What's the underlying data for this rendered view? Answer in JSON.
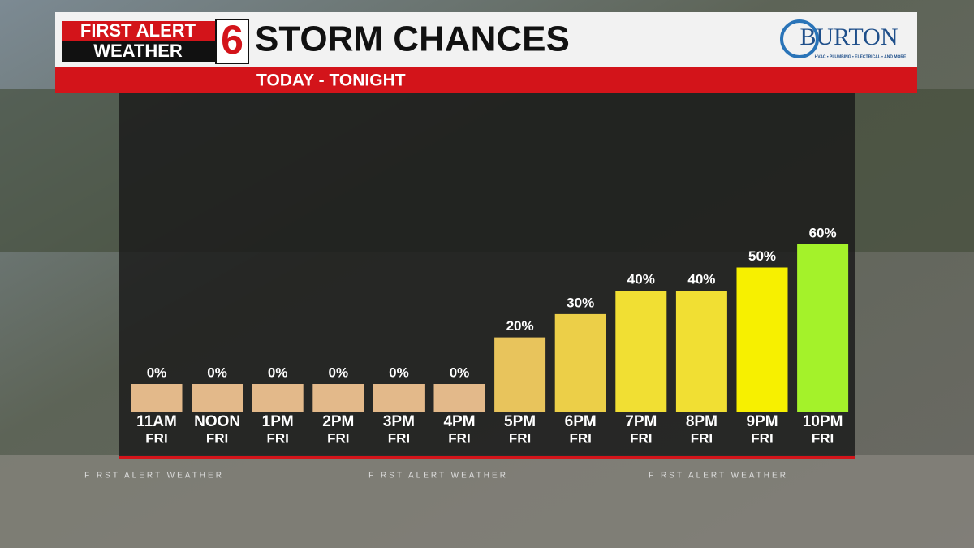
{
  "branding": {
    "logo_line1": "FIRST ALERT",
    "logo_line2": "WEATHER",
    "channel": "6",
    "sponsor": "BURTON",
    "sponsor_tagline": "HVAC • PLUMBING • ELECTRICAL • AND MORE"
  },
  "footer": [
    "FIRST ALERT WEATHER",
    "FIRST ALERT WEATHER",
    "FIRST ALERT WEATHER"
  ],
  "chart_data": {
    "type": "bar",
    "title": "STORM CHANCES",
    "subtitle": "TODAY - TONIGHT",
    "categories": [
      [
        "11AM",
        "FRI"
      ],
      [
        "NOON",
        "FRI"
      ],
      [
        "1PM",
        "FRI"
      ],
      [
        "2PM",
        "FRI"
      ],
      [
        "3PM",
        "FRI"
      ],
      [
        "4PM",
        "FRI"
      ],
      [
        "5PM",
        "FRI"
      ],
      [
        "6PM",
        "FRI"
      ],
      [
        "7PM",
        "FRI"
      ],
      [
        "8PM",
        "FRI"
      ],
      [
        "9PM",
        "FRI"
      ],
      [
        "10PM",
        "FRI"
      ]
    ],
    "values": [
      0,
      0,
      0,
      0,
      0,
      0,
      20,
      30,
      40,
      40,
      50,
      60
    ],
    "value_labels": [
      "0%",
      "0%",
      "0%",
      "0%",
      "0%",
      "0%",
      "20%",
      "30%",
      "40%",
      "40%",
      "50%",
      "60%"
    ],
    "colors": [
      "#e3b98a",
      "#e3b98a",
      "#e3b98a",
      "#e3b98a",
      "#e3b98a",
      "#e3b98a",
      "#e8c45c",
      "#eccf48",
      "#f1df33",
      "#f1df33",
      "#f7f000",
      "#a4f22a"
    ]
  }
}
